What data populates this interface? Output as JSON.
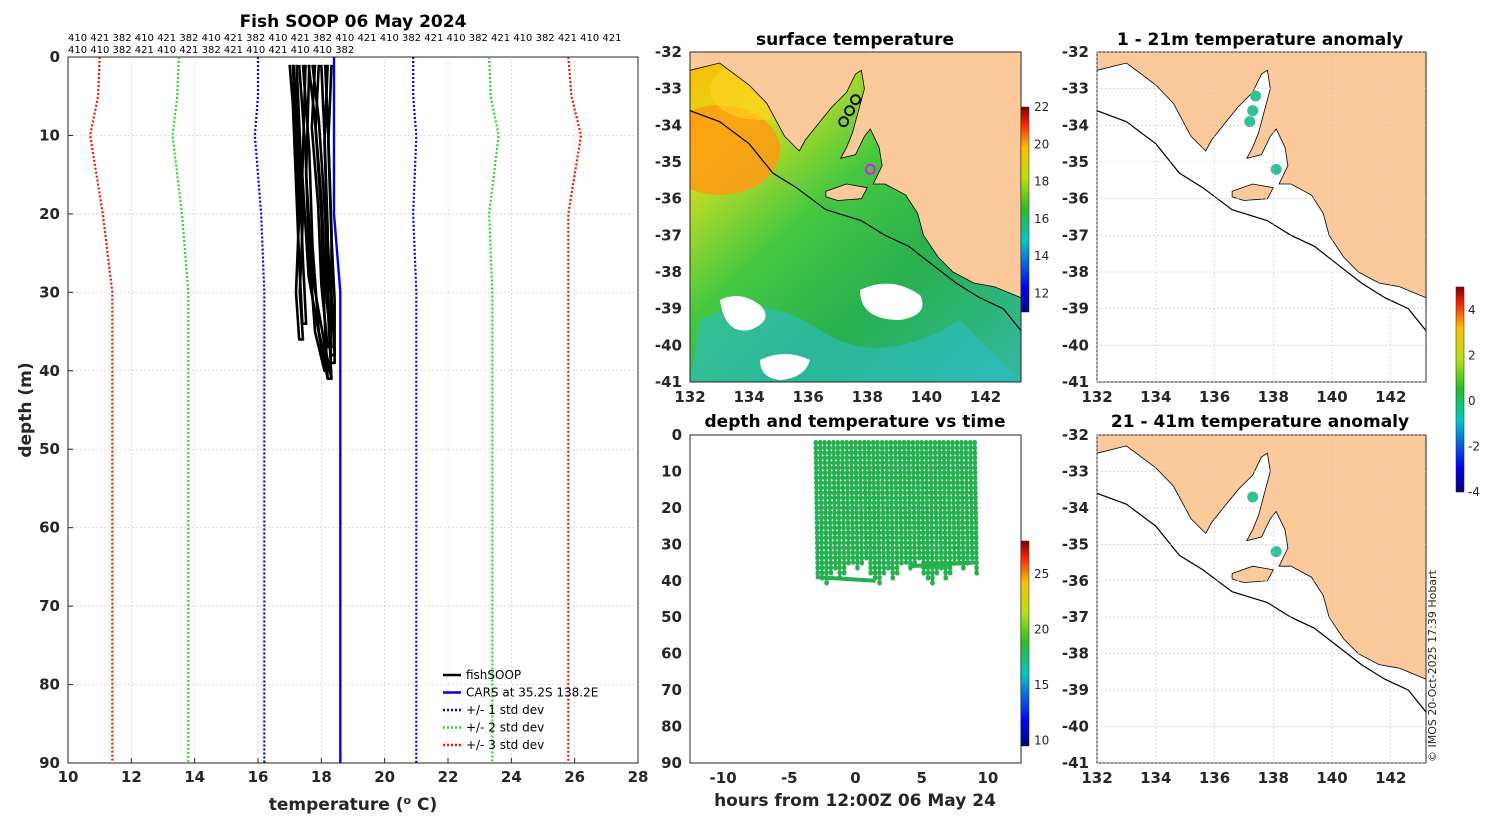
{
  "page_title": "Fish SOOP 06 May 2024",
  "deployment_ids": {
    "line1": "410 421 382 410 421 382 410 421 382 410 421 382 410 421 410 382 421 410 382 421 410 382 421 410 421",
    "line2": "410 410 382 421 410 421 382 421 410 421 410 410 382"
  },
  "credit": "© IMOS 20-Oct-2025 17:39 Hobart",
  "colors": {
    "fishsoop": "#000000",
    "cars": "#0000ff",
    "std1": "#0000ff",
    "std2": "#22dd22",
    "std3": "#ff1100",
    "land": "#fcc99a",
    "scatter": "#22b14c",
    "anomaly_dot": "#2dc39a"
  },
  "chart_data": [
    {
      "id": "profile",
      "type": "line",
      "title": "Fish SOOP 06 May 2024",
      "xlabel": "temperature (",
      "xlabel_sup": "o",
      "xlabel_end": " C)",
      "ylabel": "depth (m)",
      "xlim": [
        10,
        28
      ],
      "ylim": [
        0,
        90
      ],
      "y_reversed": true,
      "xticks": [
        10,
        12,
        14,
        16,
        18,
        20,
        22,
        24,
        26,
        28
      ],
      "yticks": [
        0,
        10,
        20,
        30,
        40,
        50,
        60,
        70,
        80,
        90
      ],
      "legend": [
        {
          "label": "fishSOOP",
          "style": "solid",
          "color_key": "fishsoop"
        },
        {
          "label": "CARS at 35.2S 138.2E",
          "style": "solid",
          "color_key": "cars"
        },
        {
          "label": "+/- 1 std dev",
          "style": "dotted",
          "color_key": "std1"
        },
        {
          "label": "+/- 2 std dev",
          "style": "dotted",
          "color_key": "std2"
        },
        {
          "label": "+/- 3 std dev",
          "style": "dotted",
          "color_key": "std3"
        }
      ],
      "legend_position": "bottom-right",
      "cars_mean": {
        "depth": [
          0,
          10,
          20,
          30,
          90
        ],
        "temp": [
          18.4,
          18.4,
          18.4,
          18.6,
          18.6
        ]
      },
      "std_lines": [
        {
          "name": "std3-low",
          "color_key": "std3",
          "depth": [
            0,
            5,
            10,
            20,
            30,
            90
          ],
          "temp": [
            11.0,
            10.95,
            10.7,
            11.1,
            11.4,
            11.4
          ]
        },
        {
          "name": "std2-low",
          "color_key": "std2",
          "depth": [
            0,
            5,
            10,
            20,
            30,
            90
          ],
          "temp": [
            13.5,
            13.45,
            13.3,
            13.6,
            13.8,
            13.8
          ]
        },
        {
          "name": "std1-low",
          "color_key": "std1",
          "depth": [
            0,
            5,
            10,
            20,
            30,
            90
          ],
          "temp": [
            16.0,
            16.0,
            15.9,
            16.1,
            16.2,
            16.2
          ]
        },
        {
          "name": "std1-high",
          "color_key": "std1",
          "depth": [
            0,
            5,
            10,
            20,
            30,
            90
          ],
          "temp": [
            20.9,
            20.9,
            21.0,
            20.9,
            21.0,
            21.0
          ]
        },
        {
          "name": "std2-high",
          "color_key": "std2",
          "depth": [
            0,
            5,
            10,
            20,
            30,
            90
          ],
          "temp": [
            23.3,
            23.35,
            23.6,
            23.3,
            23.4,
            23.4
          ]
        },
        {
          "name": "std3-high",
          "color_key": "std3",
          "depth": [
            0,
            5,
            10,
            20,
            30,
            90
          ],
          "temp": [
            25.8,
            25.9,
            26.2,
            25.8,
            25.8,
            25.8
          ]
        }
      ],
      "fishsoop_profiles": [
        {
          "depth": [
            1,
            10,
            20,
            30,
            36
          ],
          "temp": [
            17.1,
            17.2,
            17.3,
            17.2,
            17.3
          ]
        },
        {
          "depth": [
            1,
            12,
            24,
            35,
            40
          ],
          "temp": [
            17.3,
            17.5,
            17.6,
            17.8,
            18.1
          ]
        },
        {
          "depth": [
            1,
            8,
            20,
            33,
            41
          ],
          "temp": [
            17.6,
            17.8,
            18.0,
            18.1,
            18.2
          ]
        },
        {
          "depth": [
            1,
            10,
            22,
            30,
            38
          ],
          "temp": [
            18.0,
            18.1,
            18.2,
            18.2,
            18.3
          ]
        },
        {
          "depth": [
            1,
            6,
            16,
            26,
            34
          ],
          "temp": [
            17.0,
            17.1,
            17.2,
            17.3,
            17.4
          ]
        },
        {
          "depth": [
            1,
            15,
            28,
            37,
            41
          ],
          "temp": [
            17.5,
            17.4,
            17.6,
            18.0,
            18.2
          ]
        },
        {
          "depth": [
            1,
            9,
            19,
            29,
            37
          ],
          "temp": [
            17.8,
            17.7,
            17.9,
            18.0,
            18.2
          ]
        },
        {
          "depth": [
            1,
            11,
            23,
            31,
            39
          ],
          "temp": [
            18.2,
            18.1,
            18.2,
            18.3,
            18.3
          ]
        }
      ]
    },
    {
      "id": "sst-map",
      "type": "heatmap",
      "title": "surface temperature",
      "xlim": [
        132,
        143.2
      ],
      "ylim": [
        -41,
        -32
      ],
      "xticks": [
        132,
        134,
        136,
        138,
        140,
        142
      ],
      "yticks": [
        -32,
        -33,
        -34,
        -35,
        -36,
        -37,
        -38,
        -39,
        -40,
        -41
      ],
      "colorbar": {
        "min": 11,
        "max": 22,
        "ticks": [
          12,
          14,
          16,
          18,
          20,
          22
        ]
      },
      "markers": [
        {
          "lon": 137.6,
          "lat": -33.3,
          "kind": "circle"
        },
        {
          "lon": 137.4,
          "lat": -33.6,
          "kind": "circle"
        },
        {
          "lon": 137.2,
          "lat": -33.9,
          "kind": "circle"
        },
        {
          "lon": 138.1,
          "lat": -35.2,
          "kind": "magenta-circle"
        }
      ]
    },
    {
      "id": "depth-time",
      "type": "scatter",
      "title": "depth and temperature vs time",
      "xlabel": "hours from 12:00Z 06 May 24",
      "xlim": [
        -12.5,
        12.5
      ],
      "ylim": [
        0,
        90
      ],
      "y_reversed": true,
      "xticks": [
        -10,
        -5,
        0,
        5,
        10
      ],
      "yticks": [
        0,
        10,
        20,
        30,
        40,
        50,
        60,
        70,
        80,
        90
      ],
      "colorbar": {
        "min": 9.5,
        "max": 28,
        "ticks": [
          10,
          15,
          20,
          25
        ]
      },
      "time_range": [
        -3,
        9
      ],
      "n_casts": 37,
      "depth_range": [
        2,
        41
      ],
      "temperature_range": [
        17,
        18.5
      ]
    },
    {
      "id": "anom-1-21",
      "type": "heatmap",
      "title": "1 - 21m temperature anomaly",
      "xlim": [
        132,
        143.2
      ],
      "ylim": [
        -41,
        -32
      ],
      "xticks": [
        132,
        134,
        136,
        138,
        140,
        142
      ],
      "yticks": [
        -32,
        -33,
        -34,
        -35,
        -36,
        -37,
        -38,
        -39,
        -40,
        -41
      ],
      "points": [
        {
          "lon": 137.4,
          "lat": -33.2
        },
        {
          "lon": 137.3,
          "lat": -33.6
        },
        {
          "lon": 137.2,
          "lat": -33.9
        },
        {
          "lon": 138.1,
          "lat": -35.2
        }
      ]
    },
    {
      "id": "anom-21-41",
      "type": "heatmap",
      "title": "21 - 41m temperature anomaly",
      "xlim": [
        132,
        143.2
      ],
      "ylim": [
        -41,
        -32
      ],
      "xticks": [
        132,
        134,
        136,
        138,
        140,
        142
      ],
      "yticks": [
        -32,
        -33,
        -34,
        -35,
        -36,
        -37,
        -38,
        -39,
        -40,
        -41
      ],
      "colorbar": {
        "min": -4,
        "max": 5,
        "ticks": [
          -4,
          -2,
          0,
          2,
          4
        ]
      },
      "points": [
        {
          "lon": 137.3,
          "lat": -33.7
        },
        {
          "lon": 138.1,
          "lat": -35.2
        }
      ]
    }
  ]
}
